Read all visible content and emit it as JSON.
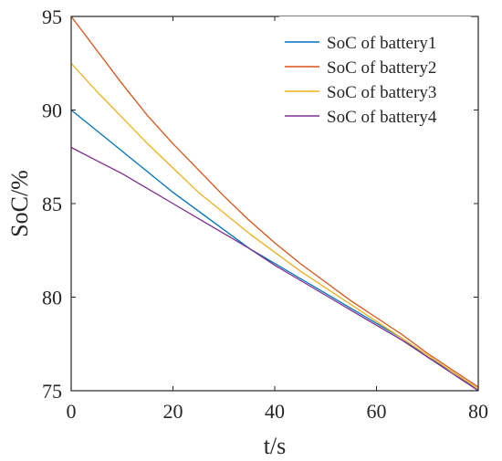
{
  "chart_data": {
    "type": "line",
    "title": "",
    "xlabel": "t/s",
    "ylabel": "SoC/%",
    "xlim": [
      0,
      80
    ],
    "ylim": [
      75,
      95
    ],
    "xticks": [
      0,
      20,
      40,
      60,
      80
    ],
    "yticks": [
      75,
      80,
      85,
      90,
      95
    ],
    "grid": false,
    "legend_position": "top-right",
    "series": [
      {
        "name": "SoC of battery1",
        "color": "#0072BD",
        "x": [
          0,
          5,
          10,
          15,
          20,
          25,
          30,
          35,
          40,
          45,
          50,
          55,
          60,
          65,
          70,
          75,
          80
        ],
        "y": [
          90.0,
          88.9,
          87.8,
          86.7,
          85.6,
          84.6,
          83.6,
          82.6,
          81.8,
          81.0,
          80.2,
          79.4,
          78.6,
          77.8,
          76.8,
          76.0,
          75.0
        ]
      },
      {
        "name": "SoC of battery2",
        "color": "#D95319",
        "x": [
          0,
          5,
          10,
          15,
          20,
          25,
          30,
          35,
          40,
          45,
          50,
          55,
          60,
          65,
          70,
          75,
          80
        ],
        "y": [
          95.0,
          93.2,
          91.4,
          89.7,
          88.2,
          86.8,
          85.4,
          84.1,
          82.9,
          81.8,
          80.8,
          79.8,
          78.9,
          78.0,
          77.0,
          76.1,
          75.2
        ]
      },
      {
        "name": "SoC of battery3",
        "color": "#EDB120",
        "x": [
          0,
          5,
          10,
          15,
          20,
          25,
          30,
          35,
          40,
          45,
          50,
          55,
          60,
          65,
          70,
          75,
          80
        ],
        "y": [
          92.5,
          91.0,
          89.6,
          88.2,
          86.9,
          85.6,
          84.5,
          83.4,
          82.4,
          81.4,
          80.5,
          79.6,
          78.7,
          77.8,
          76.9,
          76.0,
          75.1
        ]
      },
      {
        "name": "SoC of battery4",
        "color": "#7E2F8E",
        "x": [
          0,
          5,
          10,
          15,
          20,
          25,
          30,
          35,
          40,
          45,
          50,
          55,
          60,
          65,
          70,
          75,
          80
        ],
        "y": [
          88.0,
          87.3,
          86.6,
          85.8,
          85.0,
          84.2,
          83.4,
          82.6,
          81.7,
          80.9,
          80.1,
          79.3,
          78.5,
          77.7,
          76.8,
          75.9,
          75.0
        ]
      }
    ]
  }
}
